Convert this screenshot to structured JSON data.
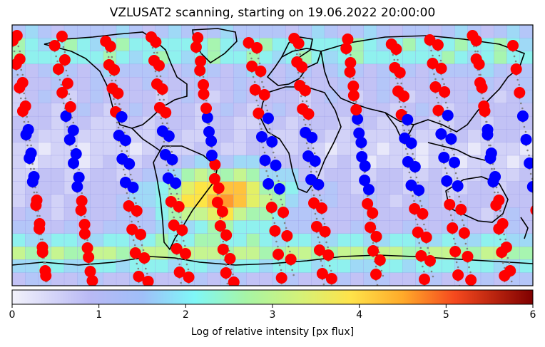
{
  "title": "VZLUSAT2 scanning, starting on 19.06.2022 20:00:00",
  "colorbar": {
    "label": "Log of relative intensity [px flux]",
    "ticks": [
      "0",
      "1",
      "2",
      "3",
      "4",
      "5",
      "6"
    ],
    "min": 0,
    "max": 6,
    "colormap": "jet-light"
  },
  "map": {
    "projection": "equirectangular",
    "lon_range": [
      -180,
      180
    ],
    "lat_range": [
      -90,
      90
    ],
    "colors": {
      "red_marker": "#ff0000",
      "blue_marker": "#0000ff",
      "track": "#808080",
      "coastline": "#000000"
    }
  }
}
